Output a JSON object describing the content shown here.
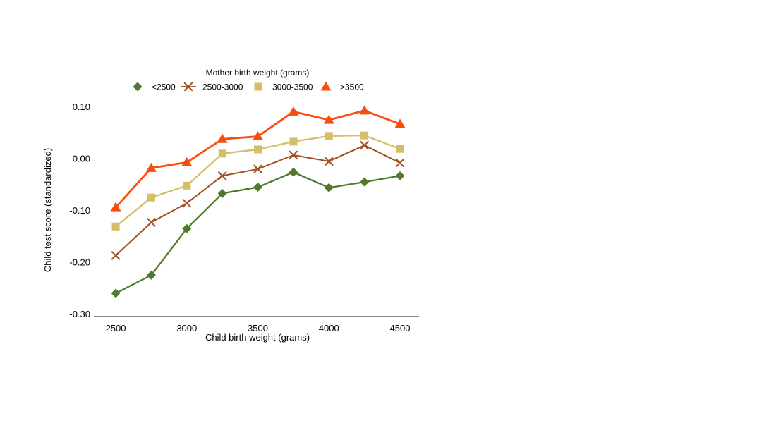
{
  "page": {
    "background": "#ffffff"
  },
  "chart_data": {
    "type": "line",
    "legend_title": "Mother birth weight (grams)",
    "xlabel": "Child birth weight (grams)",
    "ylabel": "Child test score (standardized)",
    "x": [
      2500,
      2750,
      3000,
      3250,
      3500,
      3750,
      4000,
      4250,
      4500
    ],
    "xticks": [
      2500,
      3000,
      3500,
      4000,
      4500
    ],
    "xtick_labels": [
      "2500",
      "3000",
      "3500",
      "4000",
      "4500"
    ],
    "yticks": [
      0.1,
      0.0,
      -0.1,
      -0.2,
      -0.3
    ],
    "ytick_labels": [
      "0.10",
      "0.00",
      "-0.10",
      "-0.20",
      "-0.30"
    ],
    "xlim": [
      2346,
      4629
    ],
    "ylim": [
      -0.305,
      0.116
    ],
    "grid": false,
    "legend_position": "top-center",
    "axis_color": "#444444",
    "text_color": "#000000",
    "series": [
      {
        "name": "<2500",
        "marker": "diamond",
        "color": "#4d7a2b",
        "line_width": 2.3,
        "values": [
          -0.26,
          -0.225,
          -0.135,
          -0.067,
          -0.055,
          -0.026,
          -0.056,
          -0.045,
          -0.033
        ]
      },
      {
        "name": "2500-3000",
        "marker": "x",
        "color": "#a04d1f",
        "line_width": 2.0,
        "values": [
          -0.187,
          -0.123,
          -0.086,
          -0.033,
          -0.02,
          0.007,
          -0.005,
          0.026,
          -0.008
        ]
      },
      {
        "name": "3000-3500",
        "marker": "square",
        "color": "#d5be65",
        "line_width": 2.3,
        "values": [
          -0.131,
          -0.075,
          -0.052,
          0.01,
          0.018,
          0.033,
          0.044,
          0.045,
          0.019
        ]
      },
      {
        "name": ">3500",
        "marker": "triangle",
        "color": "#fb4c10",
        "line_width": 2.8,
        "values": [
          -0.094,
          -0.018,
          -0.007,
          0.038,
          0.043,
          0.091,
          0.075,
          0.093,
          0.067
        ]
      }
    ]
  }
}
